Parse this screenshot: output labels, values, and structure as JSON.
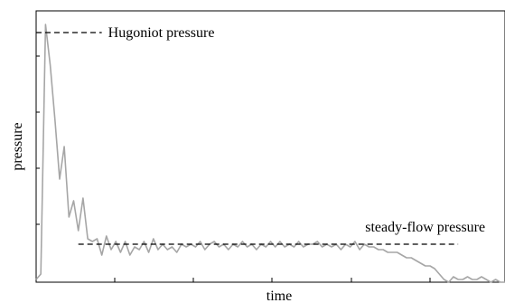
{
  "chart_data": {
    "type": "line",
    "title": "",
    "xlabel": "time",
    "ylabel": "pressure",
    "x_tick_labels": [],
    "y_tick_labels": [],
    "xlim": [
      0,
      100
    ],
    "ylim": [
      0,
      100
    ],
    "grid": false,
    "legend": "none",
    "colors": {
      "series": "#a6a6a6",
      "reference": "#000000",
      "axes": "#000000"
    },
    "series": [
      {
        "x": [
          0,
          1,
          2,
          3,
          4,
          5,
          6,
          7,
          8,
          9,
          10,
          11,
          12,
          13,
          14,
          15,
          16,
          17,
          18,
          19,
          20,
          21,
          22,
          23,
          24,
          25,
          26,
          27,
          28,
          29,
          30,
          31,
          32,
          33,
          34,
          35,
          36,
          37,
          38,
          39,
          40,
          41,
          42,
          43,
          44,
          45,
          46,
          47,
          48,
          49,
          50,
          51,
          52,
          53,
          54,
          55,
          56,
          57,
          58,
          59,
          60,
          61,
          62,
          63,
          64,
          65,
          66,
          67,
          68,
          69,
          70,
          71,
          72,
          73,
          74,
          75,
          76,
          77,
          78,
          79,
          80,
          81,
          82,
          83,
          84,
          85,
          86,
          87,
          88,
          89,
          90,
          91,
          92,
          93,
          94,
          95,
          96,
          97,
          98,
          99,
          100
        ],
        "y": [
          1,
          3,
          95,
          80,
          60,
          38,
          50,
          24,
          30,
          19,
          31,
          16,
          15,
          16,
          10,
          17,
          12,
          15,
          11,
          15,
          10,
          13,
          12,
          15,
          11,
          16,
          12,
          14,
          12,
          13,
          11,
          14,
          13,
          14,
          13,
          15,
          12,
          14,
          15,
          13,
          14,
          12,
          14,
          13,
          15,
          13,
          14,
          12,
          14,
          13,
          15,
          13,
          15,
          13,
          14,
          13,
          15,
          13,
          14,
          14,
          15,
          13,
          14,
          13,
          14,
          12,
          14,
          13,
          15,
          12,
          14,
          13,
          13,
          12,
          12,
          11,
          11,
          11,
          10,
          9,
          9,
          8,
          7,
          6,
          6,
          5,
          3,
          1,
          0,
          2,
          1,
          1,
          2,
          1,
          1,
          2,
          1,
          0,
          1,
          0,
          0
        ]
      }
    ],
    "reference_lines": [
      {
        "label": "Hugoniot pressure",
        "y": 92,
        "x_start": 0,
        "x_end": 14
      },
      {
        "label": "steady-flow pressure",
        "y": 14,
        "x_start": 9,
        "x_end": 90
      }
    ]
  }
}
